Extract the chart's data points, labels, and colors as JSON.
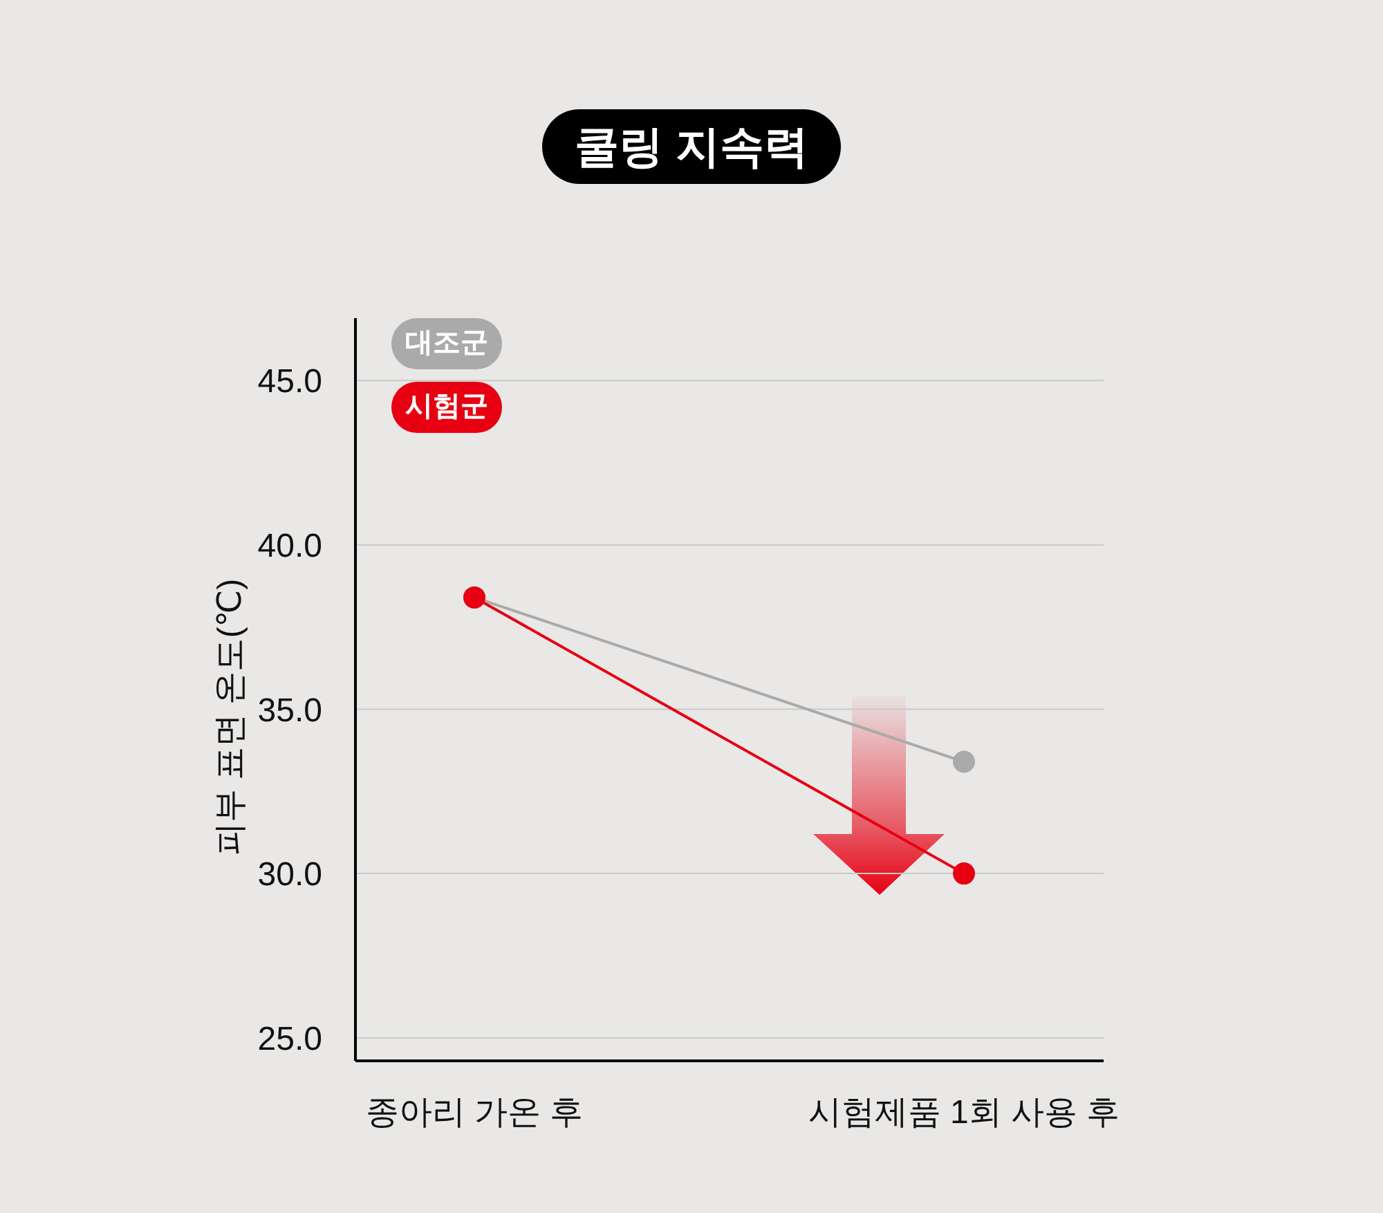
{
  "chart_data": {
    "type": "line",
    "title": "쿨링 지속력",
    "ylabel": "피부 표면 온도(℃)",
    "categories": [
      "종아리 가온 후",
      "시험제품 1회 사용 후"
    ],
    "series": [
      {
        "name": "대조군",
        "color": "#aaaaaa",
        "values": [
          38.4,
          33.4
        ]
      },
      {
        "name": "시험군",
        "color": "#e60012",
        "values": [
          38.4,
          30.0
        ]
      }
    ],
    "ylim": [
      24.3,
      46.9
    ],
    "yticks": [
      {
        "value": 25,
        "label": "25.0"
      },
      {
        "value": 30,
        "label": "30.0"
      },
      {
        "value": 35,
        "label": "35.0"
      },
      {
        "value": 40,
        "label": "40.0"
      },
      {
        "value": 45,
        "label": "45.0"
      }
    ],
    "grid": "y",
    "legend": "top left",
    "marker": "circle"
  }
}
